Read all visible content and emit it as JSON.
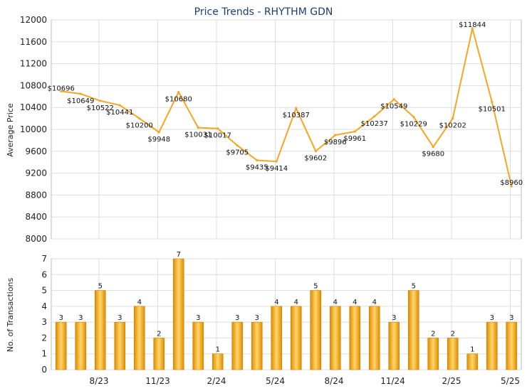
{
  "chart_data": [
    {
      "type": "line",
      "title": "Price Trends - RHYTHM GDN",
      "ylabel": "Average Price",
      "ylim": [
        8000,
        12000
      ],
      "yticks": [
        8000,
        8400,
        8800,
        9200,
        9600,
        10000,
        10400,
        10800,
        11200,
        11600,
        12000
      ],
      "grid": true,
      "line_color": "#f5a623",
      "series": [
        {
          "values": [
            10696,
            10649,
            10522,
            10441,
            10200,
            9948,
            10680,
            10031,
            10017,
            9705,
            9435,
            9414,
            10387,
            9602,
            9896,
            9961,
            10237,
            10549,
            10229,
            9680,
            10202,
            11844,
            10501,
            8960
          ],
          "labels": [
            "$10696",
            "$10649",
            "$10522",
            "$10441",
            "$10200",
            "$9948",
            "$10680",
            "$10031",
            "$10017",
            "$9705",
            "$9435",
            "$9414",
            "$10387",
            "$9602",
            "$9896",
            "$9961",
            "$10237",
            "$10549",
            "$10229",
            "$9680",
            "$10202",
            "$11844",
            "$10501",
            "$8960"
          ]
        }
      ]
    },
    {
      "type": "bar",
      "ylabel": "No. of Transactions",
      "ylim": [
        0,
        7
      ],
      "yticks": [
        0,
        1,
        2,
        3,
        4,
        5,
        6,
        7
      ],
      "xtick_labels": [
        "8/23",
        "11/23",
        "2/24",
        "5/24",
        "8/24",
        "11/24",
        "2/25",
        "5/25"
      ],
      "grid": true,
      "bar_color": "#f5a623",
      "series": [
        {
          "values": [
            3,
            3,
            5,
            3,
            4,
            2,
            7,
            3,
            1,
            3,
            3,
            4,
            4,
            5,
            4,
            4,
            4,
            3,
            5,
            2,
            2,
            1,
            3,
            3
          ]
        }
      ]
    }
  ]
}
